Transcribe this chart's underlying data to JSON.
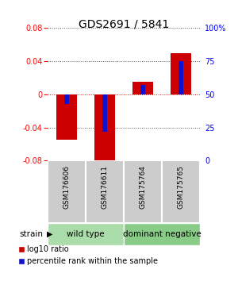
{
  "title": "GDS2691 / 5841",
  "samples": [
    "GSM176606",
    "GSM176611",
    "GSM175764",
    "GSM175765"
  ],
  "log10_ratio": [
    -0.055,
    -0.086,
    0.015,
    0.05
  ],
  "percentile_rank": [
    43,
    22,
    57,
    75
  ],
  "ylim": [
    -0.08,
    0.08
  ],
  "yticks_left": [
    -0.08,
    -0.04,
    0,
    0.04,
    0.08
  ],
  "yticks_right_vals": [
    -0.08,
    -0.04,
    0,
    0.04,
    0.08
  ],
  "yticks_right_labels": [
    "0",
    "25",
    "50",
    "75",
    "100%"
  ],
  "bar_width": 0.55,
  "blue_bar_width": 0.12,
  "red_color": "#cc0000",
  "blue_color": "#1111cc",
  "title_fontsize": 10,
  "tick_fontsize": 7,
  "sample_label_fontsize": 6.5,
  "group_label_fontsize": 7.5,
  "legend_fontsize": 7,
  "group_configs": [
    {
      "start": 0,
      "end": 1,
      "label": "wild type",
      "color": "#aaddaa"
    },
    {
      "start": 2,
      "end": 3,
      "label": "dominant negative",
      "color": "#88cc88"
    }
  ],
  "sample_box_color": "#cccccc",
  "background_color": "#ffffff"
}
